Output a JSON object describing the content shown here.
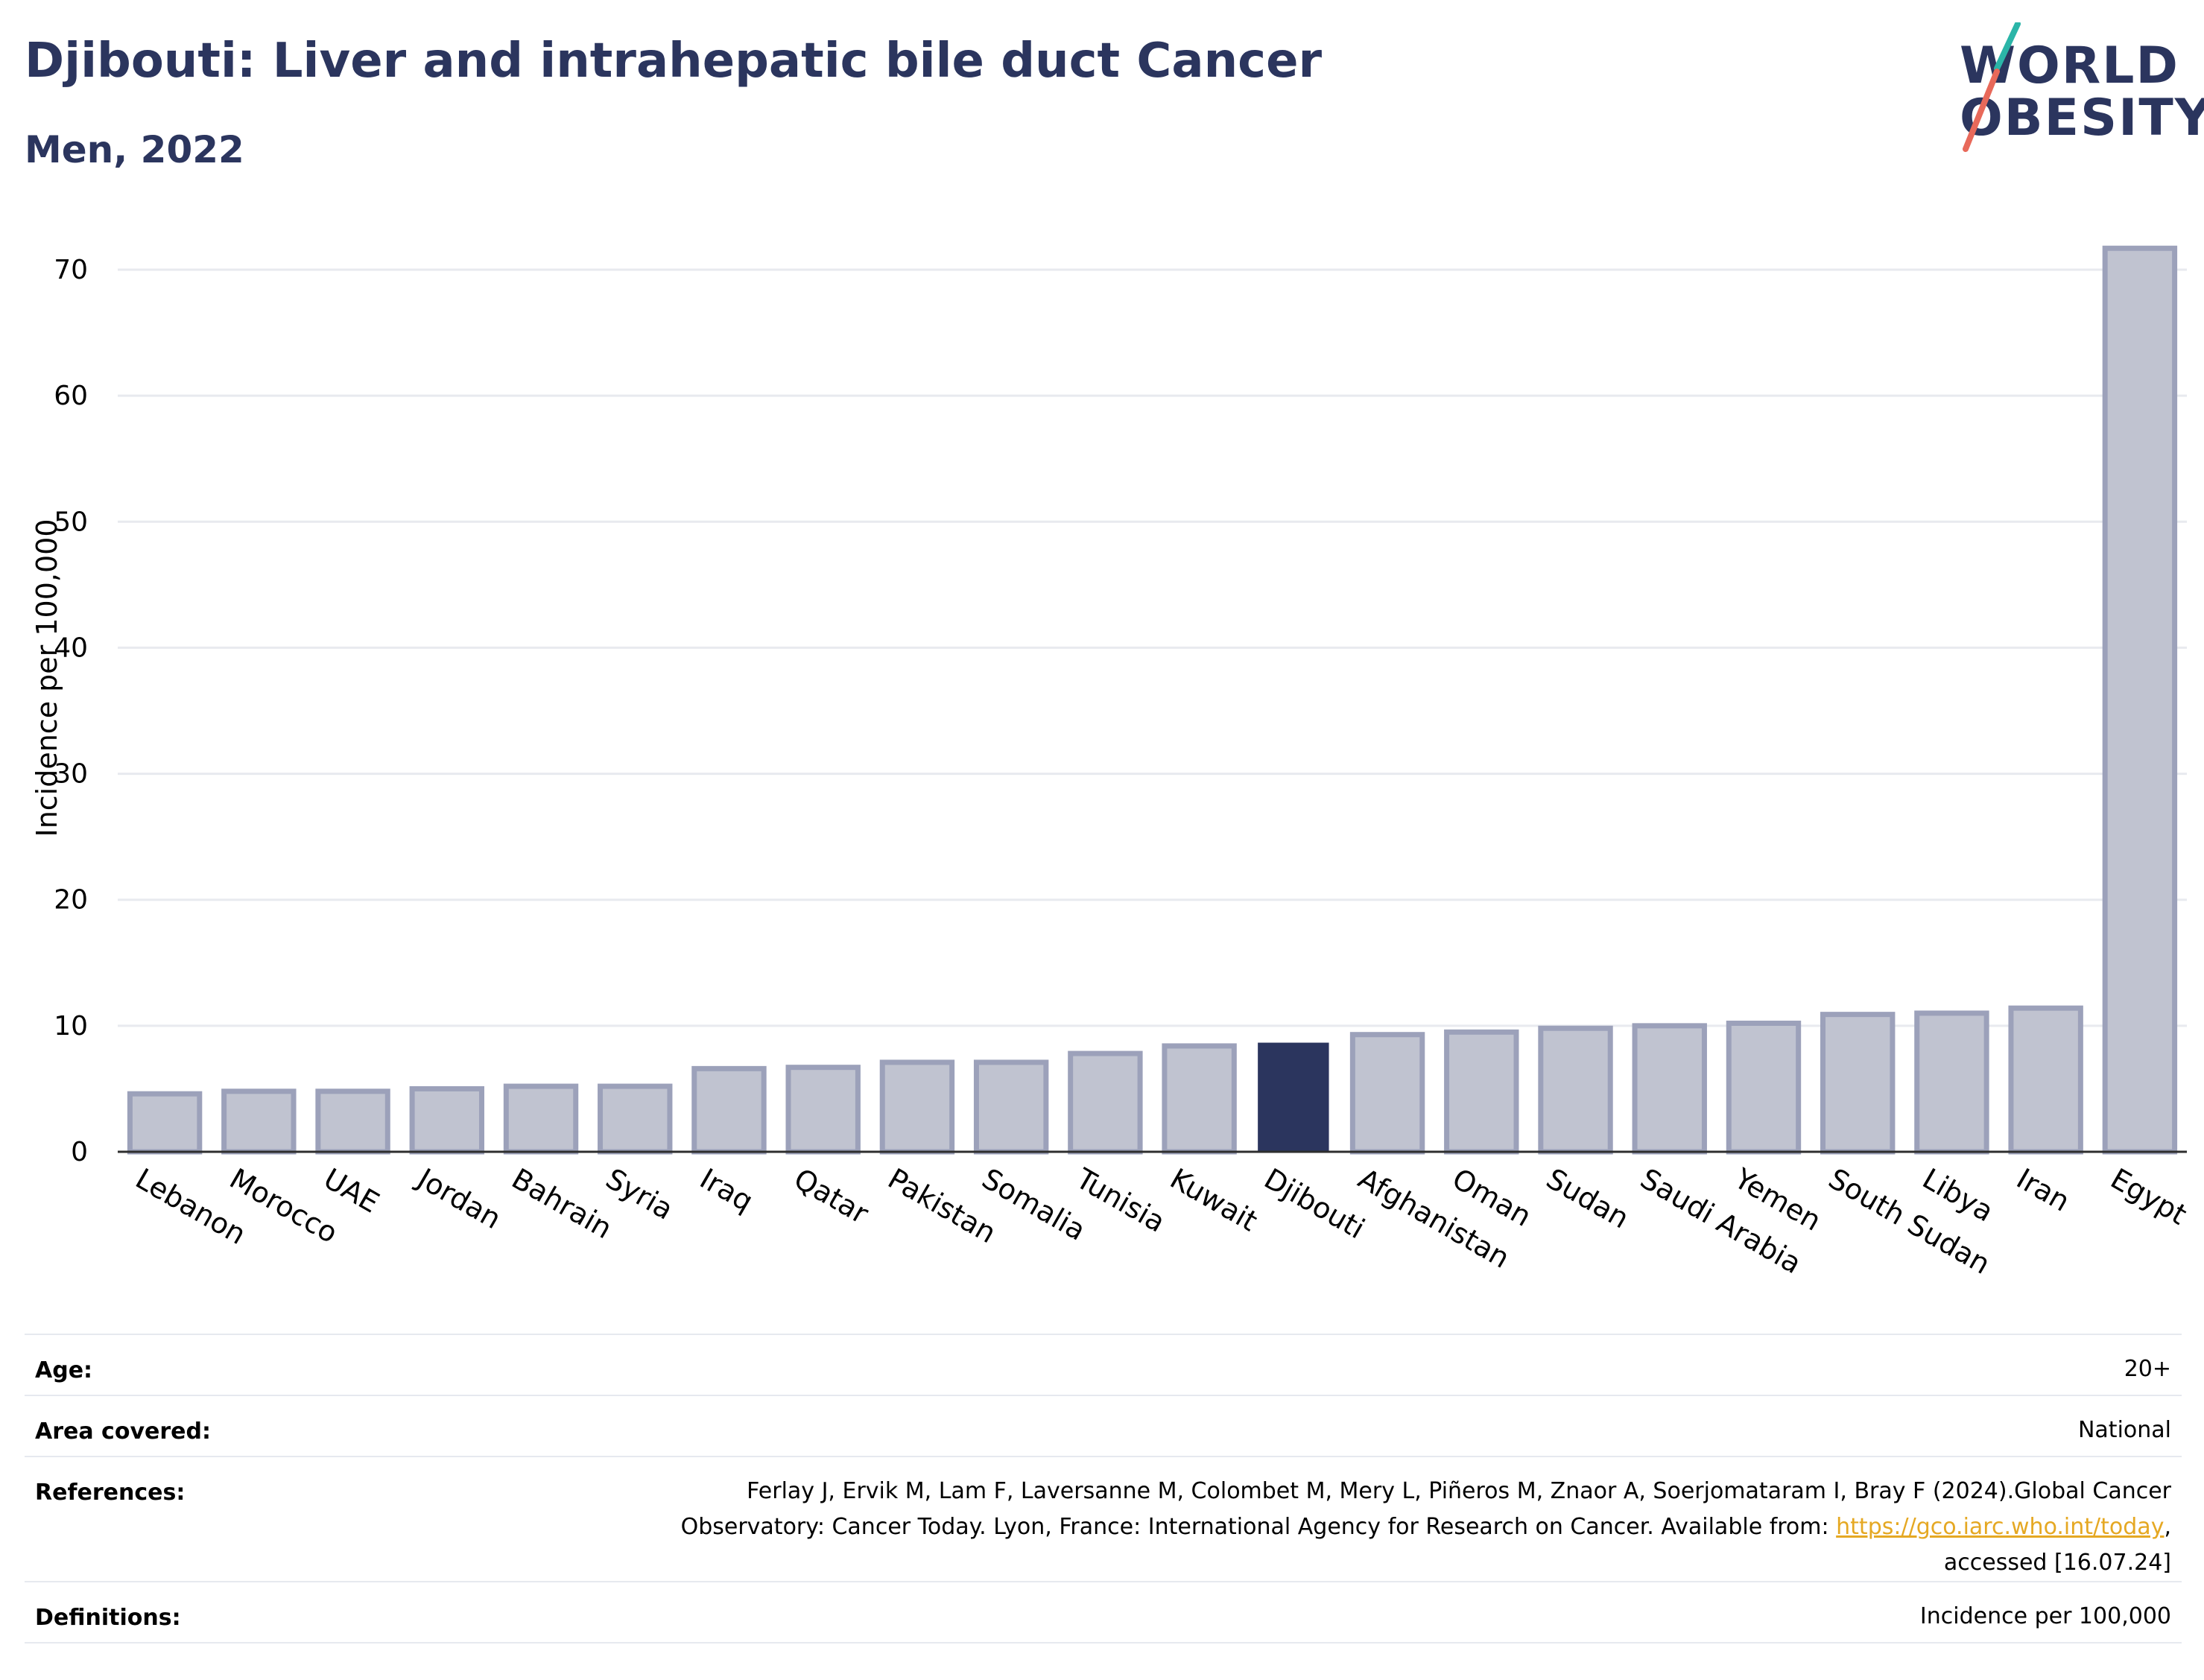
{
  "header": {
    "title": "Djibouti: Liver and intrahepatic bile duct Cancer",
    "subtitle": "Men, 2022"
  },
  "logo": {
    "line1": "WORLD",
    "line2": "OBESITY",
    "slash_top_color": "#2bb5a8",
    "slash_bottom_color": "#e8695a"
  },
  "colors": {
    "highlight": "#2b355e",
    "bar_fill": "#c0c3d0",
    "bar_stroke": "#9ca1ba",
    "text_dark": "#2b355e",
    "link": "#e5a823"
  },
  "chart_data": {
    "type": "bar",
    "ylabel": "Incidence per 100,000",
    "ylim": [
      0,
      75
    ],
    "yticks": [
      0,
      10,
      20,
      30,
      40,
      50,
      60,
      70
    ],
    "grid": true,
    "highlight": "Djibouti",
    "categories": [
      "Lebanon",
      "Morocco",
      "UAE",
      "Jordan",
      "Bahrain",
      "Syria",
      "Iraq",
      "Qatar",
      "Pakistan",
      "Somalia",
      "Tunisia",
      "Kuwait",
      "Djibouti",
      "Afghanistan",
      "Oman",
      "Sudan",
      "Saudi Arabia",
      "Yemen",
      "South Sudan",
      "Libya",
      "Iran",
      "Egypt"
    ],
    "values": [
      4.6,
      4.8,
      4.8,
      5.0,
      5.2,
      5.2,
      6.6,
      6.7,
      7.1,
      7.1,
      7.8,
      8.4,
      8.6,
      9.3,
      9.5,
      9.8,
      10.0,
      10.2,
      10.9,
      11.0,
      11.4,
      71.7
    ]
  },
  "meta": {
    "age_label": "Age:",
    "age_value": "20+",
    "area_label": "Area covered:",
    "area_value": "National",
    "references_label": "References:",
    "references_line1": "Ferlay J, Ervik M, Lam F, Laversanne M, Colombet M, Mery L, Piñeros M, Znaor A, Soerjomataram I, Bray F (2024).Global Cancer",
    "references_line2_pre": "Observatory: Cancer Today. Lyon, France: International Agency for Research on Cancer. Available from: ",
    "references_link": "https://gco.iarc.who.int/today",
    "references_line2_post": ",",
    "references_line3": "accessed [16.07.24]",
    "definitions_label": "Definitions:",
    "definitions_value": "Incidence per 100,000"
  }
}
